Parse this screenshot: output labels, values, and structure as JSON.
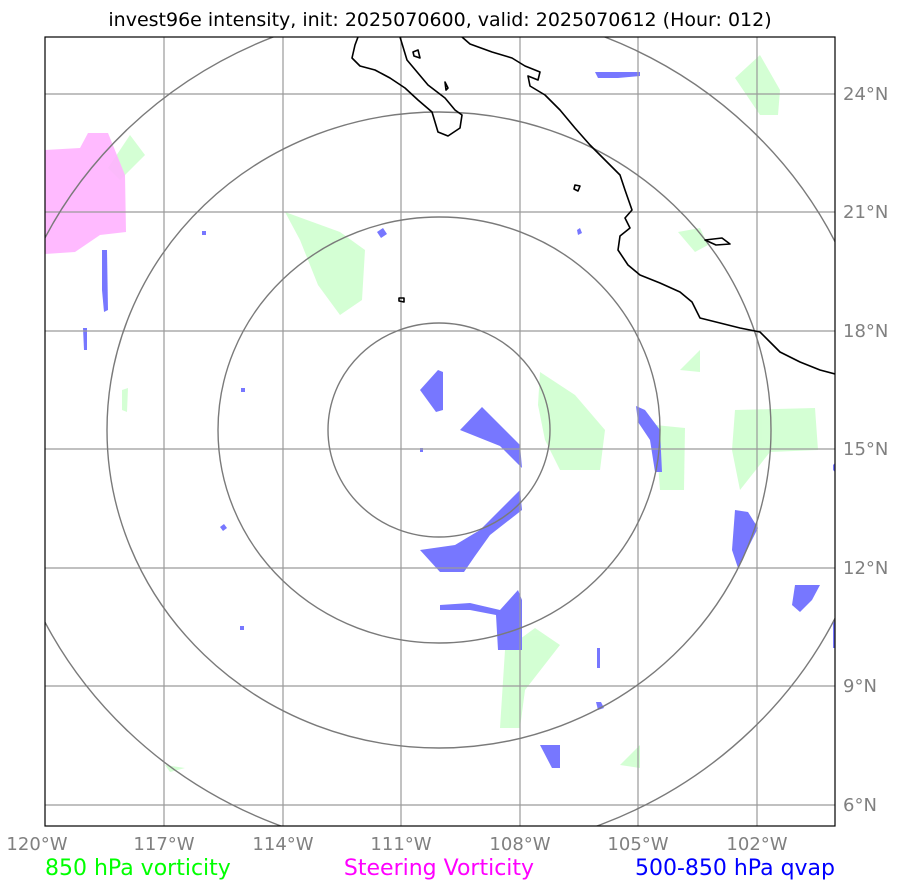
{
  "title": "invest96e intensity, init: 2025070600, valid: 2025070612 (Hour: 012)",
  "map": {
    "lon_ticks": [
      "120°W",
      "117°W",
      "114°W",
      "111°W",
      "108°W",
      "105°W",
      "102°W"
    ],
    "lat_ticks": [
      "24°N",
      "21°N",
      "18°N",
      "15°N",
      "12°N",
      "9°N",
      "6°N"
    ],
    "colors": {
      "vort850": "#ccffcc",
      "steering": "#ffb3ff",
      "qvap": "#7777ff",
      "grid": "#9a9a9a",
      "rings": "#7a7a7a",
      "coast": "#000000"
    }
  },
  "legend": [
    {
      "label": "850 hPa vorticity",
      "color": "#00ff00"
    },
    {
      "label": "Steering Vorticity",
      "color": "#ff00ff"
    },
    {
      "label": "500-850 hPa qvap",
      "color": "#0000ff"
    }
  ]
}
